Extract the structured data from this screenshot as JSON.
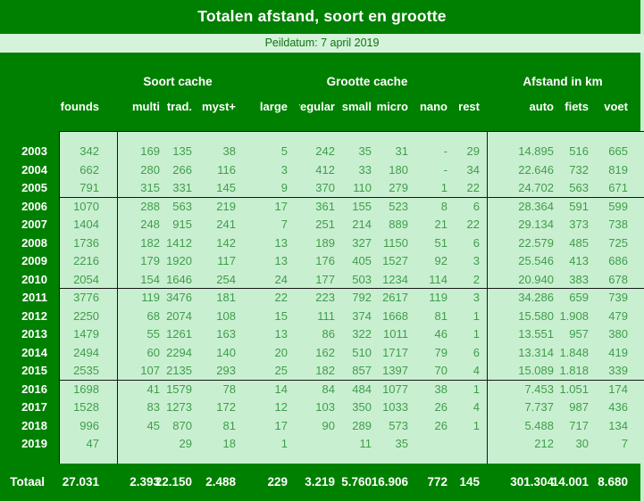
{
  "title": "Totalen afstand, soort en grootte",
  "subtitle": "Peildatum: 7 april 2019",
  "chart_data": {
    "type": "table",
    "column_groups": [
      {
        "label": "Soort cache",
        "columns": [
          "multi",
          "trad.",
          "myst+"
        ]
      },
      {
        "label": "Grootte cache",
        "columns": [
          "large",
          "regular",
          "small",
          "micro",
          "nano",
          "rest"
        ]
      },
      {
        "label": "Afstand in km",
        "columns": [
          "auto",
          "fiets",
          "voet"
        ]
      }
    ],
    "columns": [
      "founds",
      "multi",
      "trad.",
      "myst+",
      "large",
      "regular",
      "small",
      "micro",
      "nano",
      "rest",
      "auto",
      "fiets",
      "voet"
    ],
    "rows": [
      {
        "year": "2003",
        "values": [
          "342",
          "169",
          "135",
          "38",
          "5",
          "242",
          "35",
          "31",
          "-",
          "29",
          "14.895",
          "516",
          "665"
        ]
      },
      {
        "year": "2004",
        "values": [
          "662",
          "280",
          "266",
          "116",
          "3",
          "412",
          "33",
          "180",
          "-",
          "34",
          "22.646",
          "732",
          "819"
        ]
      },
      {
        "year": "2005",
        "values": [
          "791",
          "315",
          "331",
          "145",
          "9",
          "370",
          "110",
          "279",
          "1",
          "22",
          "24.702",
          "563",
          "671"
        ]
      },
      {
        "year": "2006",
        "values": [
          "1070",
          "288",
          "563",
          "219",
          "17",
          "361",
          "155",
          "523",
          "8",
          "6",
          "28.364",
          "591",
          "599"
        ]
      },
      {
        "year": "2007",
        "values": [
          "1404",
          "248",
          "915",
          "241",
          "7",
          "251",
          "214",
          "889",
          "21",
          "22",
          "29.134",
          "373",
          "738"
        ]
      },
      {
        "year": "2008",
        "values": [
          "1736",
          "182",
          "1412",
          "142",
          "13",
          "189",
          "327",
          "1150",
          "51",
          "6",
          "22.579",
          "485",
          "725"
        ]
      },
      {
        "year": "2009",
        "values": [
          "2216",
          "179",
          "1920",
          "117",
          "13",
          "176",
          "405",
          "1527",
          "92",
          "3",
          "25.546",
          "413",
          "686"
        ]
      },
      {
        "year": "2010",
        "values": [
          "2054",
          "154",
          "1646",
          "254",
          "24",
          "177",
          "503",
          "1234",
          "114",
          "2",
          "20.940",
          "383",
          "678"
        ]
      },
      {
        "year": "2011",
        "values": [
          "3776",
          "119",
          "3476",
          "181",
          "22",
          "223",
          "792",
          "2617",
          "119",
          "3",
          "34.286",
          "659",
          "739"
        ]
      },
      {
        "year": "2012",
        "values": [
          "2250",
          "68",
          "2074",
          "108",
          "15",
          "111",
          "374",
          "1668",
          "81",
          "1",
          "15.580",
          "1.908",
          "479"
        ]
      },
      {
        "year": "2013",
        "values": [
          "1479",
          "55",
          "1261",
          "163",
          "13",
          "86",
          "322",
          "1011",
          "46",
          "1",
          "13.551",
          "957",
          "380"
        ]
      },
      {
        "year": "2014",
        "values": [
          "2494",
          "60",
          "2294",
          "140",
          "20",
          "162",
          "510",
          "1717",
          "79",
          "6",
          "13.314",
          "1.848",
          "419"
        ]
      },
      {
        "year": "2015",
        "values": [
          "2535",
          "107",
          "2135",
          "293",
          "25",
          "182",
          "857",
          "1397",
          "70",
          "4",
          "15.089",
          "1.818",
          "339"
        ]
      },
      {
        "year": "2016",
        "values": [
          "1698",
          "41",
          "1579",
          "78",
          "14",
          "84",
          "484",
          "1077",
          "38",
          "1",
          "7.453",
          "1.051",
          "174"
        ]
      },
      {
        "year": "2017",
        "values": [
          "1528",
          "83",
          "1273",
          "172",
          "12",
          "103",
          "350",
          "1033",
          "26",
          "4",
          "7.737",
          "987",
          "436"
        ]
      },
      {
        "year": "2018",
        "values": [
          "996",
          "45",
          "870",
          "81",
          "17",
          "90",
          "289",
          "573",
          "26",
          "1",
          "5.488",
          "717",
          "134"
        ]
      },
      {
        "year": "2019",
        "values": [
          "47",
          "",
          "29",
          "18",
          "1",
          "",
          "11",
          "35",
          "",
          "",
          "212",
          "30",
          "7"
        ]
      }
    ],
    "group_breaks_after": [
      "2005",
      "2010",
      "2015"
    ],
    "total": {
      "label": "Totaal",
      "values": [
        "27.031",
        "2.393",
        "22.150",
        "2.488",
        "229",
        "3.219",
        "5.760",
        "16.906",
        "772",
        "145",
        "301.304",
        "14.001",
        "8.680"
      ]
    }
  },
  "colors": {
    "background_green": "#008000",
    "cell_green": "#c9efd1",
    "band_green": "#d4f3da",
    "number_green": "#3f9e4a",
    "header_text": "#ffffff",
    "grid_line": "#161616"
  }
}
